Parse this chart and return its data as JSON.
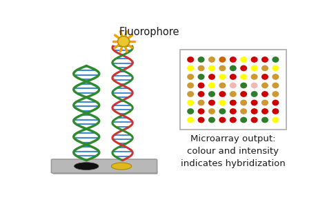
{
  "title": "Fluorophore",
  "microarray_label": "Microarray output:\ncolour and intensity\nindicates hybridization",
  "bg_color": "#ffffff",
  "microarray_dots": [
    [
      "#cc0000",
      "#2d7d2d",
      "#cc9933",
      "#cc6600",
      "#cc0000",
      "#ffff00",
      "#cc0000",
      "#cc0000",
      "#2d7d2d"
    ],
    [
      "#ffff00",
      "#cc9933",
      "#ffff00",
      "#cc9933",
      "#2d7d2d",
      "#cc0000",
      "#ffff00",
      "#cc9933",
      "#ffff00"
    ],
    [
      "#cc9933",
      "#2d7d2d",
      "#cc0000",
      "#ffff00",
      "#cc0000",
      "#ffff00",
      "#cc9933",
      "#cc0000",
      "#cc9933"
    ],
    [
      "#cc9933",
      "#cc0000",
      "#ffff00",
      "#cc9933",
      "#f0b8b8",
      "#2d7d2d",
      "#f0b8b8",
      "#cc9933",
      "#cc9933"
    ],
    [
      "#cc9933",
      "#cc0000",
      "#2d7d2d",
      "#cc0000",
      "#cc9933",
      "#cc0000",
      "#2d7d2d",
      "#cc0000",
      "#cc9933"
    ],
    [
      "#ffff00",
      "#cc9933",
      "#cc0000",
      "#ffff00",
      "#cc0000",
      "#cc9933",
      "#cc0000",
      "#cc9933",
      "#cc0000"
    ],
    [
      "#2d7d2d",
      "#cc0000",
      "#cc9933",
      "#2d7d2d",
      "#cc0000",
      "#cc9933",
      "#cc0000",
      "#cc0000",
      "#cc0000"
    ],
    [
      "#ffff00",
      "#cc0000",
      "#2d7d2d",
      "#cc0000",
      "#cc0000",
      "#2d7d2d",
      "#cc0000",
      "#2d7d2d",
      "#ffff00"
    ]
  ],
  "platform_color": "#b8b8b8",
  "platform_edge": "#999999",
  "spot1_color": "#111111",
  "spot2_color": "#ddb820",
  "fluorophore_body": "#e8c830",
  "fluorophore_rays": "#f0a000",
  "dna1_strand_color": "#2d8a2d",
  "dna1_rung_color": "#4488cc",
  "dna2_strand1_color": "#cc3333",
  "dna2_strand2_color": "#2d8a2d",
  "dna2_rung_color": "#4488cc"
}
